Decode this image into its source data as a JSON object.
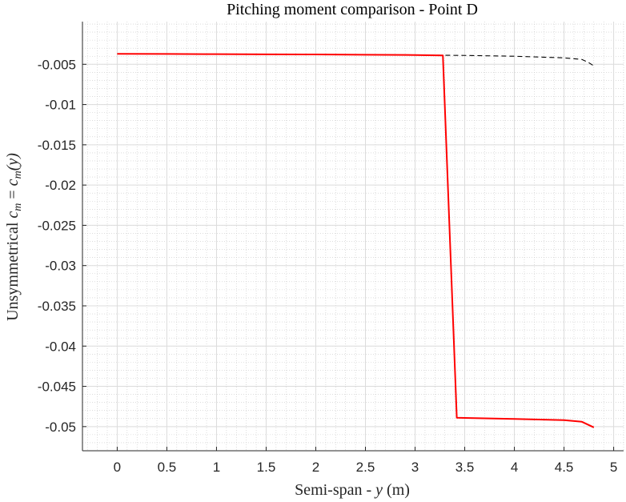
{
  "chart_data": {
    "type": "line",
    "title": "Pitching moment comparison - Point D",
    "xlabel": {
      "prefix": "Semi-span - ",
      "var": "y",
      "unit": "(m)"
    },
    "ylabel": {
      "prefix": "Unsymmetrical ",
      "expr": "c",
      "sub": "m",
      "eq": " = ",
      "expr2": "c",
      "sub2": "m",
      "arg": "(y)"
    },
    "xlim": [
      -0.35,
      5.1
    ],
    "ylim": [
      -0.053,
      0.0003
    ],
    "x_ticks": [
      0,
      0.5,
      1,
      1.5,
      2,
      2.5,
      3,
      3.5,
      4,
      4.5,
      5
    ],
    "x_tick_labels": [
      "0",
      "0.5",
      "1",
      "1.5",
      "2",
      "2.5",
      "3",
      "3.5",
      "4",
      "4.5",
      "5"
    ],
    "y_ticks": [
      -0.005,
      -0.01,
      -0.015,
      -0.02,
      -0.025,
      -0.03,
      -0.035,
      -0.04,
      -0.045,
      -0.05
    ],
    "y_tick_labels": [
      "-0.005",
      "-0.01",
      "-0.015",
      "-0.02",
      "-0.025",
      "-0.03",
      "-0.035",
      "-0.04",
      "-0.045",
      "-0.05"
    ],
    "grid": true,
    "minor_grid": true,
    "series": [
      {
        "style": "dashed",
        "color": "#000000",
        "x": [
          0,
          0.5,
          1,
          1.5,
          2,
          2.5,
          3,
          3.3,
          3.5,
          4,
          4.5,
          4.68,
          4.75,
          4.8
        ],
        "y": [
          -0.0037,
          -0.00372,
          -0.00374,
          -0.00376,
          -0.00378,
          -0.00381,
          -0.00385,
          -0.00388,
          -0.0039,
          -0.004,
          -0.0042,
          -0.0044,
          -0.0048,
          -0.0052
        ]
      },
      {
        "style": "solid",
        "color": "#ff0000",
        "x": [
          0,
          0.5,
          1,
          1.5,
          2,
          2.5,
          3,
          3.28,
          3.42,
          3.5,
          4,
          4.5,
          4.68,
          4.8
        ],
        "y": [
          -0.0037,
          -0.00372,
          -0.00374,
          -0.00376,
          -0.00378,
          -0.00381,
          -0.00385,
          -0.0039,
          -0.0489,
          -0.04892,
          -0.04905,
          -0.0492,
          -0.0494,
          -0.0501
        ]
      }
    ]
  }
}
